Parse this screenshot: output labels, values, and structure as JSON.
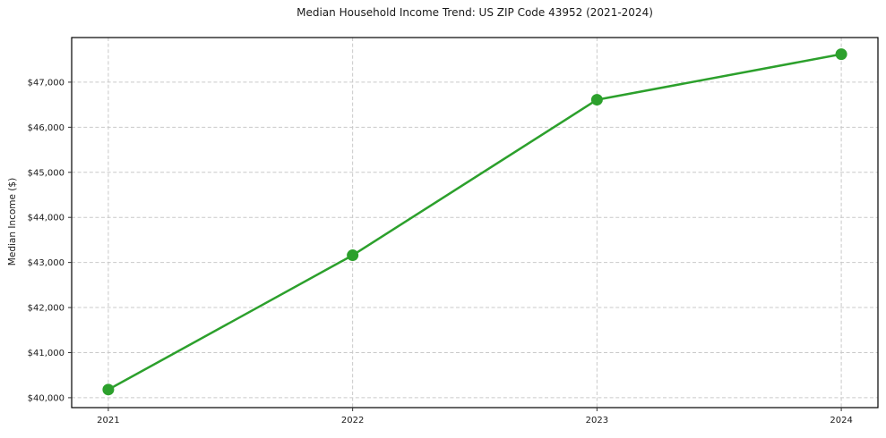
{
  "chart_data": {
    "type": "line",
    "title": "Median Household Income Trend: US ZIP Code 43952 (2021-2024)",
    "xlabel": "",
    "ylabel": "Median Income ($)",
    "x": [
      2021,
      2022,
      2023,
      2024
    ],
    "x_tick_labels": [
      "2021",
      "2022",
      "2023",
      "2024"
    ],
    "series": [
      {
        "name": "Median Household Income",
        "values": [
          40180,
          43160,
          46610,
          47620
        ],
        "color": "#2ca02c",
        "marker": "circle",
        "line_width": 2.5,
        "marker_radius": 6.5
      }
    ],
    "y_ticks": [
      40000,
      41000,
      42000,
      43000,
      44000,
      45000,
      46000,
      47000
    ],
    "y_tick_labels": [
      "$40,000",
      "$41,000",
      "$42,000",
      "$43,000",
      "$44,000",
      "$45,000",
      "$46,000",
      "$47,000"
    ],
    "xlim": [
      2020.85,
      2024.15
    ],
    "ylim": [
      39780,
      47990
    ],
    "grid": {
      "show": true,
      "style": "dashed",
      "color": "#c9c9c9",
      "dash": "4 2.6"
    },
    "axes": {
      "spine_color": "#000000",
      "tick_color": "#333333",
      "text_color": "#1a1a1a",
      "background": "#ffffff"
    },
    "legend": {
      "show": false
    }
  }
}
